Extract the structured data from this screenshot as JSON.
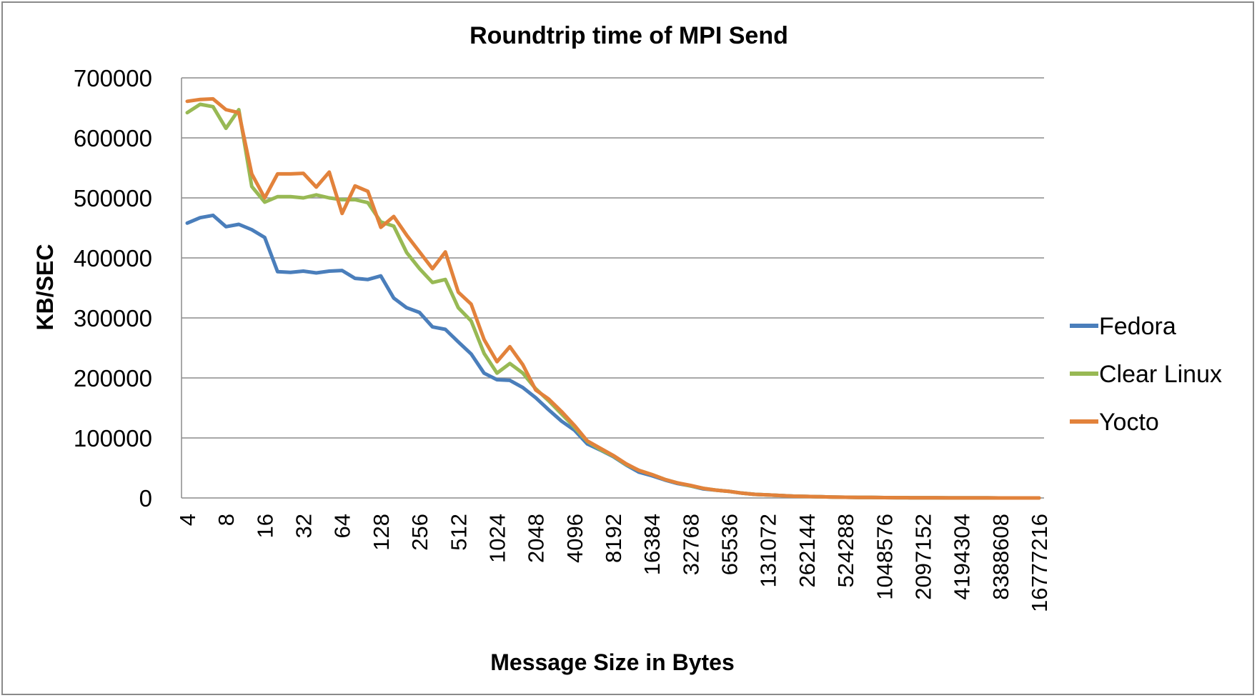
{
  "chart_data": {
    "type": "line",
    "title": "Roundtrip time of MPI Send",
    "xlabel": "Message Size in Bytes",
    "ylabel": "KB/SEC",
    "ylim": [
      0,
      700000
    ],
    "yticks": [
      "0",
      "100000",
      "200000",
      "300000",
      "400000",
      "500000",
      "600000",
      "700000"
    ],
    "grid": true,
    "legend": "right",
    "x_tick_labels": [
      "4",
      "8",
      "16",
      "32",
      "64",
      "128",
      "256",
      "512",
      "1024",
      "2048",
      "4096",
      "8192",
      "16384",
      "32768",
      "65536",
      "131072",
      "262144",
      "524288",
      "1048576",
      "2097152",
      "4194304",
      "8388608",
      "16777216"
    ],
    "series": [
      {
        "name": "Fedora",
        "color": "#4a7ebb",
        "values": [
          458000,
          467000,
          471000,
          452000,
          456000,
          447000,
          434000,
          377000,
          376000,
          378000,
          375000,
          378000,
          379000,
          366000,
          364000,
          370000,
          333000,
          317000,
          309000,
          285000,
          281000,
          260000,
          240000,
          208000,
          197000,
          196000,
          184000,
          167000,
          147000,
          128000,
          113000,
          90000,
          80000,
          69000,
          55000,
          43000,
          37000,
          30000,
          24000,
          20000,
          15000,
          13000,
          11000,
          8000,
          6000,
          5000,
          4000,
          3000,
          2500,
          2000,
          1500,
          1200,
          1000,
          800,
          600,
          500,
          400,
          300,
          200,
          150,
          100,
          80,
          60,
          50,
          40,
          30,
          20
        ]
      },
      {
        "name": "Clear Linux",
        "color": "#98b954",
        "values": [
          642000,
          656000,
          652000,
          616000,
          647000,
          519000,
          493000,
          502000,
          502000,
          500000,
          505000,
          500000,
          497000,
          497000,
          492000,
          460000,
          453000,
          409000,
          382000,
          359000,
          364000,
          317000,
          295000,
          241000,
          208000,
          224000,
          208000,
          182000,
          162000,
          140000,
          118000,
          94000,
          81000,
          70000,
          56000,
          46000,
          39000,
          31000,
          25000,
          20000,
          16000,
          13000,
          11000,
          8000,
          6000,
          5000,
          4000,
          3000,
          2500,
          2000,
          1500,
          1200,
          1000,
          800,
          600,
          500,
          400,
          300,
          200,
          150,
          100,
          80,
          60,
          50,
          40,
          30,
          20
        ]
      },
      {
        "name": "Yocto",
        "color": "#e2823b",
        "values": [
          661000,
          664000,
          665000,
          647000,
          642000,
          540000,
          500000,
          540000,
          540000,
          541000,
          518000,
          543000,
          474000,
          520000,
          511000,
          451000,
          469000,
          438000,
          410000,
          382000,
          410000,
          343000,
          323000,
          264000,
          227000,
          252000,
          222000,
          180000,
          165000,
          144000,
          121000,
          95000,
          83000,
          71000,
          57000,
          46000,
          39000,
          31000,
          25000,
          21000,
          16000,
          13000,
          11000,
          8000,
          6000,
          5000,
          4000,
          3000,
          2500,
          2000,
          1500,
          1200,
          1000,
          800,
          600,
          500,
          400,
          300,
          200,
          150,
          100,
          80,
          60,
          50,
          40,
          30,
          20
        ]
      }
    ]
  }
}
